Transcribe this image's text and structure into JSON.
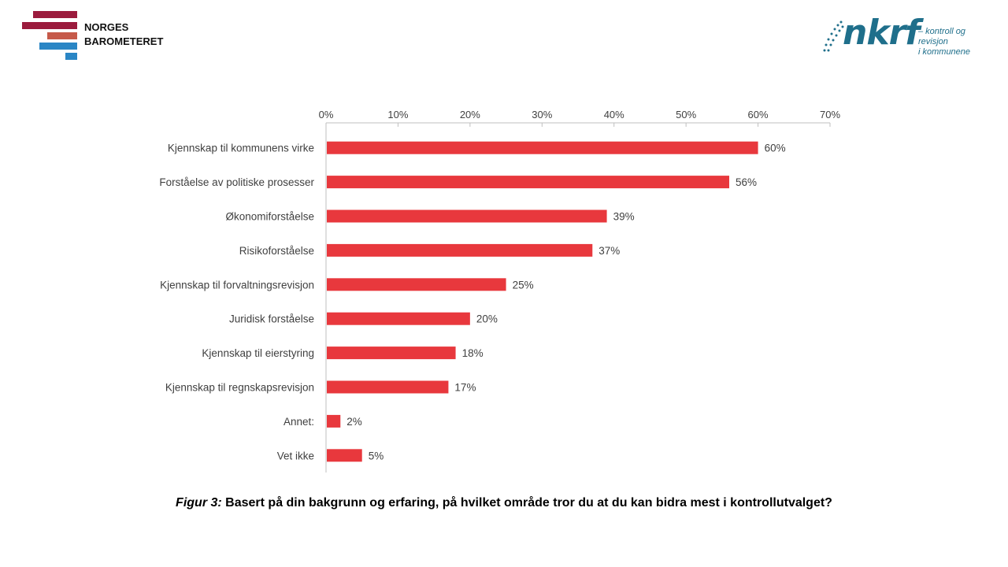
{
  "header": {
    "brand_line1": "NORGES",
    "brand_line2": "BAROMETERET",
    "partner_logo": "nkrf",
    "partner_tagline_line1": "– kontroll og revisjon",
    "partner_tagline_line2": "i kommunene"
  },
  "colors": {
    "bar": "#e8383d",
    "axis": "#bfbfbf",
    "text": "#404040",
    "stripe_dark": "#9b1b3d",
    "stripe_salmon": "#c65a4a",
    "stripe_blue": "#2a86c5",
    "partner_blue": "#1f6f8b"
  },
  "caption": {
    "lead": "Figur 3:",
    "text": " Basert på din bakgrunn og erfaring, på hvilket område tror du at du kan bidra mest i kontrollutvalget?"
  },
  "chart_data": {
    "type": "bar",
    "orientation": "horizontal",
    "categories": [
      "Kjennskap til kommunens virke",
      "Forståelse av politiske prosesser",
      "Økonomiforståelse",
      "Risikoforståelse",
      "Kjennskap til forvaltningsrevisjon",
      "Juridisk forståelse",
      "Kjennskap til eierstyring",
      "Kjennskap til regnskapsrevisjon",
      "Annet:",
      "Vet ikke"
    ],
    "values": [
      60,
      56,
      39,
      37,
      25,
      20,
      18,
      17,
      2,
      5
    ],
    "value_labels": [
      "60%",
      "56%",
      "39%",
      "37%",
      "25%",
      "20%",
      "18%",
      "17%",
      "2%",
      "5%"
    ],
    "xlim": [
      0,
      70
    ],
    "x_ticks": [
      "0%",
      "10%",
      "20%",
      "30%",
      "40%",
      "50%",
      "60%",
      "70%"
    ],
    "x_axis_position": "top",
    "grid": false,
    "legend": "none"
  }
}
